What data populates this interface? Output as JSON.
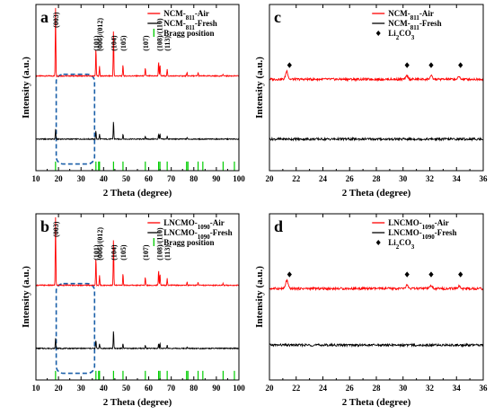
{
  "colors": {
    "air": "#ff0000",
    "fresh": "#000000",
    "bragg": "#00cc00",
    "box": "#1a5fa8",
    "axis": "#000000"
  },
  "chart_data": [
    {
      "panel": "a",
      "type": "line",
      "xlabel": "2 Theta (degree)",
      "ylabel": "Intensity (a.u.)",
      "xlim": [
        10,
        100
      ],
      "xticks": [
        10,
        20,
        30,
        40,
        50,
        60,
        70,
        80,
        90,
        100
      ],
      "legend": {
        "position": "top-right",
        "entries": [
          "NCM-811-Air",
          "NCM-811-Fresh",
          "Bragg position"
        ]
      },
      "series": [
        {
          "name": "NCM-811-Air",
          "color": "#ff0000",
          "baseline": 0.57,
          "peaks": [
            [
              18.7,
              0.41
            ],
            [
              36.6,
              0.17
            ],
            [
              38.2,
              0.06
            ],
            [
              44.4,
              0.29
            ],
            [
              48.6,
              0.07
            ],
            [
              58.5,
              0.05
            ],
            [
              64.4,
              0.09
            ],
            [
              65.0,
              0.07
            ],
            [
              68.2,
              0.04
            ],
            [
              77.0,
              0.02
            ],
            [
              81.9,
              0.02
            ],
            [
              93.0,
              0.01
            ]
          ]
        },
        {
          "name": "NCM-811-Fresh",
          "color": "#000000",
          "baseline": 0.19,
          "peaks": [
            [
              18.7,
              0.06
            ],
            [
              36.6,
              0.05
            ],
            [
              38.2,
              0.03
            ],
            [
              44.4,
              0.11
            ],
            [
              48.6,
              0.03
            ],
            [
              58.5,
              0.02
            ],
            [
              64.4,
              0.03
            ],
            [
              65.0,
              0.03
            ],
            [
              68.2,
              0.02
            ],
            [
              77.0,
              0.01
            ]
          ]
        }
      ],
      "bragg_positions": [
        18.7,
        36.6,
        37.8,
        38.2,
        44.4,
        48.6,
        58.5,
        64.4,
        65.0,
        68.2,
        76.8,
        77.4,
        81.9,
        84.0,
        93.0,
        98.0
      ],
      "peak_labels": [
        {
          "x": 18.7,
          "text": "(003)"
        },
        {
          "x": 36.6,
          "text": "(101)"
        },
        {
          "x": 38.2,
          "text": "(006)/(012)"
        },
        {
          "x": 44.4,
          "text": "(104)"
        },
        {
          "x": 48.6,
          "text": "(105)"
        },
        {
          "x": 58.5,
          "text": "(107)"
        },
        {
          "x": 64.7,
          "text": "(108)/(110)"
        },
        {
          "x": 68.2,
          "text": "(113)"
        }
      ],
      "highlight_box": {
        "x": [
          19,
          36
        ]
      }
    },
    {
      "panel": "c",
      "type": "line",
      "xlabel": "2 Theta (degree)",
      "ylabel": "Intensity (a.u.)",
      "xlim": [
        20,
        36
      ],
      "xticks": [
        20,
        22,
        24,
        26,
        28,
        30,
        32,
        34,
        36
      ],
      "legend": {
        "position": "top-right",
        "entries": [
          "NCM-811-Air",
          "NCM-811-Fresh",
          "Li2CO3"
        ]
      },
      "series": [
        {
          "name": "NCM-811-Air",
          "color": "#ff0000",
          "baseline": 0.55,
          "peaks": [
            [
              21.3,
              0.05
            ],
            [
              30.3,
              0.02
            ],
            [
              32.1,
              0.02
            ],
            [
              34.2,
              0.015
            ]
          ]
        },
        {
          "name": "NCM-811-Fresh",
          "color": "#000000",
          "baseline": 0.19,
          "peaks": []
        }
      ],
      "marker_positions": [
        21.5,
        30.3,
        32.1,
        34.3
      ]
    },
    {
      "panel": "b",
      "type": "line",
      "xlabel": "2 Theta (degree)",
      "ylabel": "Intensity (a.u.)",
      "xlim": [
        10,
        100
      ],
      "xticks": [
        10,
        20,
        30,
        40,
        50,
        60,
        70,
        80,
        90,
        100
      ],
      "legend": {
        "position": "top-right",
        "entries": [
          "LNCMO-1090-Air",
          "LNCMO-1090-Fresh",
          "Bragg position"
        ]
      },
      "series": [
        {
          "name": "LNCMO-1090-Air",
          "color": "#ff0000",
          "baseline": 0.57,
          "peaks": [
            [
              18.7,
              0.41
            ],
            [
              36.6,
              0.17
            ],
            [
              38.2,
              0.06
            ],
            [
              44.4,
              0.29
            ],
            [
              48.6,
              0.07
            ],
            [
              58.5,
              0.05
            ],
            [
              64.4,
              0.09
            ],
            [
              65.0,
              0.07
            ],
            [
              68.2,
              0.04
            ],
            [
              77.0,
              0.02
            ],
            [
              81.9,
              0.02
            ],
            [
              93.0,
              0.01
            ]
          ]
        },
        {
          "name": "LNCMO-1090-Fresh",
          "color": "#000000",
          "baseline": 0.19,
          "peaks": [
            [
              18.7,
              0.06
            ],
            [
              36.6,
              0.05
            ],
            [
              38.2,
              0.03
            ],
            [
              44.4,
              0.11
            ],
            [
              48.6,
              0.03
            ],
            [
              58.5,
              0.02
            ],
            [
              64.4,
              0.03
            ],
            [
              65.0,
              0.03
            ],
            [
              68.2,
              0.02
            ],
            [
              77.0,
              0.01
            ]
          ]
        }
      ],
      "bragg_positions": [
        18.7,
        36.6,
        37.8,
        38.2,
        44.4,
        48.6,
        58.5,
        64.4,
        65.0,
        68.2,
        76.8,
        77.4,
        81.9,
        84.0,
        93.0,
        98.0
      ],
      "peak_labels": [
        {
          "x": 18.7,
          "text": "(003)"
        },
        {
          "x": 36.6,
          "text": "(101)"
        },
        {
          "x": 38.2,
          "text": "(006)/(012)"
        },
        {
          "x": 44.4,
          "text": "(104)"
        },
        {
          "x": 48.6,
          "text": "(105)"
        },
        {
          "x": 58.5,
          "text": "(107)"
        },
        {
          "x": 64.7,
          "text": "(108)/(110)"
        },
        {
          "x": 68.2,
          "text": "(113)"
        }
      ],
      "highlight_box": {
        "x": [
          19,
          36
        ]
      }
    },
    {
      "panel": "d",
      "type": "line",
      "xlabel": "2 Theta (degree)",
      "ylabel": "Intensity (a.u.)",
      "xlim": [
        20,
        36
      ],
      "xticks": [
        20,
        22,
        24,
        26,
        28,
        30,
        32,
        34,
        36
      ],
      "legend": {
        "position": "top-right",
        "entries": [
          "LNCMO-1090-Air",
          "LNCMO-1090-Fresh",
          "Li2CO3"
        ]
      },
      "series": [
        {
          "name": "LNCMO-1090-Air",
          "color": "#ff0000",
          "baseline": 0.55,
          "peaks": [
            [
              21.3,
              0.05
            ],
            [
              30.3,
              0.02
            ],
            [
              32.1,
              0.02
            ],
            [
              34.2,
              0.015
            ]
          ]
        },
        {
          "name": "LNCMO-1090-Fresh",
          "color": "#000000",
          "baseline": 0.21,
          "peaks": []
        }
      ],
      "marker_positions": [
        21.5,
        30.3,
        32.1,
        34.3
      ]
    }
  ]
}
